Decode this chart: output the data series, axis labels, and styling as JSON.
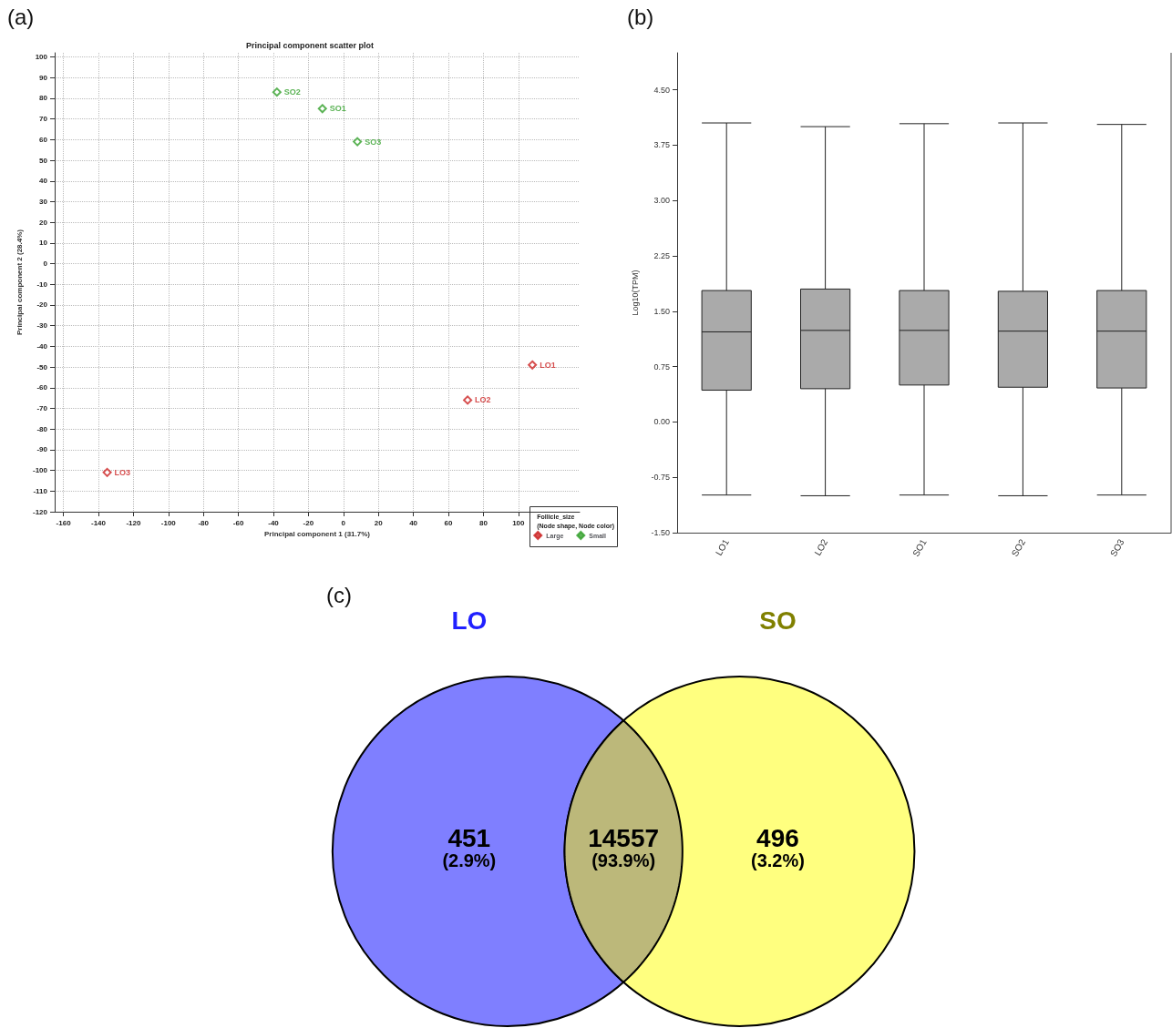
{
  "chart_data": [
    {
      "type": "scatter",
      "title": "Principal component scatter plot",
      "xlabel": "Principal component 1 (31.7%)",
      "ylabel": "Principal component 2 (28.4%)",
      "legend_title": "Follicle_size\n(Node shape, Node color)",
      "annotations": [
        "(a)"
      ],
      "series": [
        {
          "name": "Large",
          "color": "#cc2222",
          "x": [
            108,
            71,
            -135
          ],
          "values": [
            -49,
            -66,
            -101
          ],
          "value_labels": [
            "LO1",
            "LO2",
            "LO3"
          ]
        },
        {
          "name": "Small",
          "color": "#33a02c",
          "x": [
            -12,
            -38,
            8
          ],
          "values": [
            75,
            83,
            59
          ],
          "value_labels": [
            "SO1",
            "SO2",
            "SO3"
          ]
        }
      ],
      "xlim": [
        -165,
        135
      ],
      "ylim": [
        -120,
        102
      ],
      "xticks": [
        -160,
        -140,
        -120,
        -100,
        -80,
        -60,
        -40,
        -20,
        0,
        20,
        40,
        60,
        80,
        100
      ],
      "yticks": [
        -120,
        -110,
        -100,
        -90,
        -80,
        -70,
        -60,
        -50,
        -40,
        -30,
        -20,
        -10,
        0,
        10,
        20,
        30,
        40,
        50,
        60,
        70,
        80,
        90,
        100
      ],
      "grid": true,
      "legend": "bottom right",
      "marker": "diamond"
    },
    {
      "type": "box",
      "ylabel": "Log10(TPM)",
      "annotations": [
        "(b)"
      ],
      "categories": [
        "LO1",
        "LO2",
        "SO1",
        "SO2",
        "SO3"
      ],
      "series": [
        {
          "color": "#aaaaaa",
          "boxes": [
            {
              "low": -0.99,
              "q1": 0.43,
              "median": 1.22,
              "q3": 1.78,
              "high": 4.05
            },
            {
              "low": -1.0,
              "q1": 0.45,
              "median": 1.24,
              "q3": 1.8,
              "high": 4.0
            },
            {
              "low": -0.99,
              "q1": 0.5,
              "median": 1.24,
              "q3": 1.78,
              "high": 4.04
            },
            {
              "low": -1.0,
              "q1": 0.47,
              "median": 1.23,
              "q3": 1.77,
              "high": 4.05
            },
            {
              "low": -0.99,
              "q1": 0.46,
              "median": 1.23,
              "q3": 1.78,
              "high": 4.03
            }
          ]
        }
      ],
      "ylim": [
        -1.5,
        5.0
      ],
      "yticks": [
        {
          "value": -1.5,
          "label": "-1.50"
        },
        {
          "value": -0.75,
          "label": "-0.75"
        },
        {
          "value": 0,
          "label": "0.00"
        },
        {
          "value": 0.75,
          "label": "0.75"
        },
        {
          "value": 1.5,
          "label": "1.50"
        },
        {
          "value": 2.25,
          "label": "2.25"
        },
        {
          "value": 3,
          "label": "3.00"
        },
        {
          "value": 3.75,
          "label": "3.75"
        },
        {
          "value": 4.5,
          "label": "4.50"
        }
      ],
      "grid": false,
      "legend": false
    },
    {
      "type": "other",
      "annotations": [
        "(c)",
        "(2.9%)",
        "(93.9%)",
        "(3.2%)"
      ],
      "categories": [
        "LO",
        null,
        "SO"
      ],
      "values": [
        451,
        14557,
        496
      ],
      "data_labels": true,
      "colors": [
        "#7f7fff",
        "#bcb87a",
        "#ffff7f"
      ]
    }
  ]
}
